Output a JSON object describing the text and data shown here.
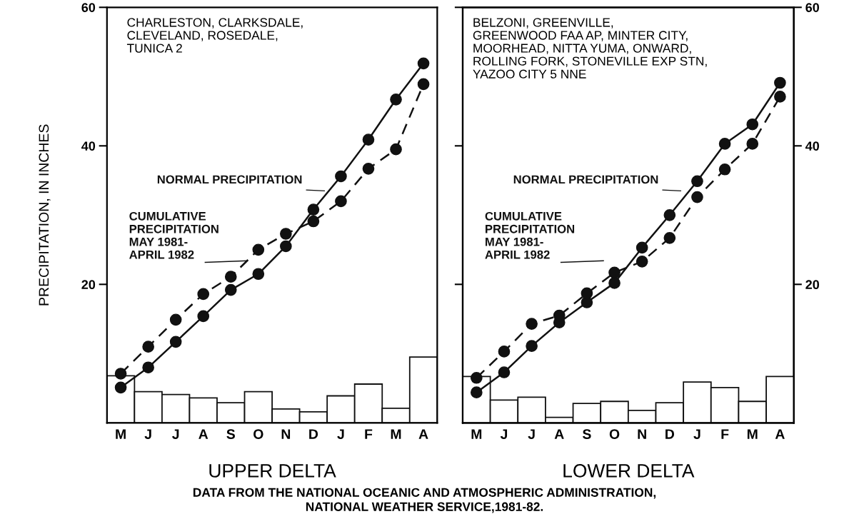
{
  "chart_data": [
    {
      "type": "bar",
      "xlabel": "UPPER DELTA",
      "ylabel": "PRECIPITATION, IN INCHES",
      "categories": [
        "M",
        "J",
        "J",
        "A",
        "S",
        "O",
        "N",
        "D",
        "J",
        "F",
        "M",
        "A"
      ],
      "ylim": [
        0,
        60
      ],
      "yticks": [
        20,
        40,
        60
      ],
      "grid": false,
      "annotations": [
        "CHARLESTON, CLARKSDALE,\nCLEVELAND, ROSEDALE,\nTUNICA 2"
      ],
      "series": [
        {
          "type": "bar",
          "color": "#ffffff",
          "values": [
            6.8,
            4.5,
            4.1,
            3.6,
            2.9,
            4.5,
            2.0,
            1.6,
            3.9,
            5.6,
            2.1,
            9.5
          ]
        },
        {
          "type": "line",
          "name": "NORMAL PRECIPITATION",
          "color": "#111111",
          "marker": "circle",
          "line_style": "solid",
          "values": [
            5.1,
            8.0,
            11.7,
            15.4,
            19.2,
            21.5,
            25.5,
            30.8,
            35.6,
            40.9,
            46.7,
            51.9
          ]
        },
        {
          "type": "line",
          "name": "CUMULATIVE\nPRECIPITATION\nMAY 1981-\nAPRIL 1982",
          "color": "#111111",
          "marker": "circle",
          "line_style": "dashed",
          "values": [
            7.1,
            11.0,
            14.9,
            18.6,
            21.1,
            25.0,
            27.3,
            29.1,
            32.0,
            36.7,
            39.5,
            48.9
          ]
        }
      ]
    },
    {
      "type": "bar",
      "xlabel": "LOWER DELTA",
      "categories": [
        "M",
        "J",
        "J",
        "A",
        "S",
        "O",
        "N",
        "D",
        "J",
        "F",
        "M",
        "A"
      ],
      "y2lim": [
        0,
        60
      ],
      "y2ticks": [
        20,
        40,
        60
      ],
      "grid": false,
      "annotations": [
        "BELZONI, GREENVILLE,\nGREENWOOD FAA AP, MINTER CITY,\nMOORHEAD, NITTA YUMA, ONWARD,\nROLLING FORK, STONEVILLE EXP STN,\nYAZOO CITY 5 NNE",
        "DATA FROM THE NATIONAL OCEANIC AND ATMOSPHERIC ADMINISTRATION,\nNATIONAL WEATHER SERVICE,1981-82."
      ],
      "series": [
        {
          "type": "bar",
          "axis": "y2",
          "color": "#ffffff",
          "values": [
            6.7,
            3.3,
            3.7,
            0.8,
            2.8,
            3.1,
            1.8,
            2.9,
            5.9,
            5.1,
            3.1,
            6.7
          ]
        },
        {
          "type": "line",
          "axis": "y2",
          "name": "NORMAL PRECIPITATION",
          "color": "#111111",
          "marker": "circle",
          "line_style": "solid",
          "values": [
            4.4,
            7.3,
            11.1,
            14.5,
            17.4,
            20.2,
            25.3,
            30.0,
            34.9,
            40.3,
            43.1,
            49.1
          ]
        },
        {
          "type": "line",
          "axis": "y2",
          "name": "CUMULATIVE\nPRECIPITATION\nMAY 1981-\nAPRIL 1982",
          "color": "#111111",
          "marker": "circle",
          "line_style": "dashed",
          "values": [
            6.5,
            10.3,
            14.3,
            15.5,
            18.7,
            21.7,
            23.3,
            26.7,
            32.6,
            36.6,
            40.3,
            47.1
          ]
        }
      ]
    }
  ]
}
